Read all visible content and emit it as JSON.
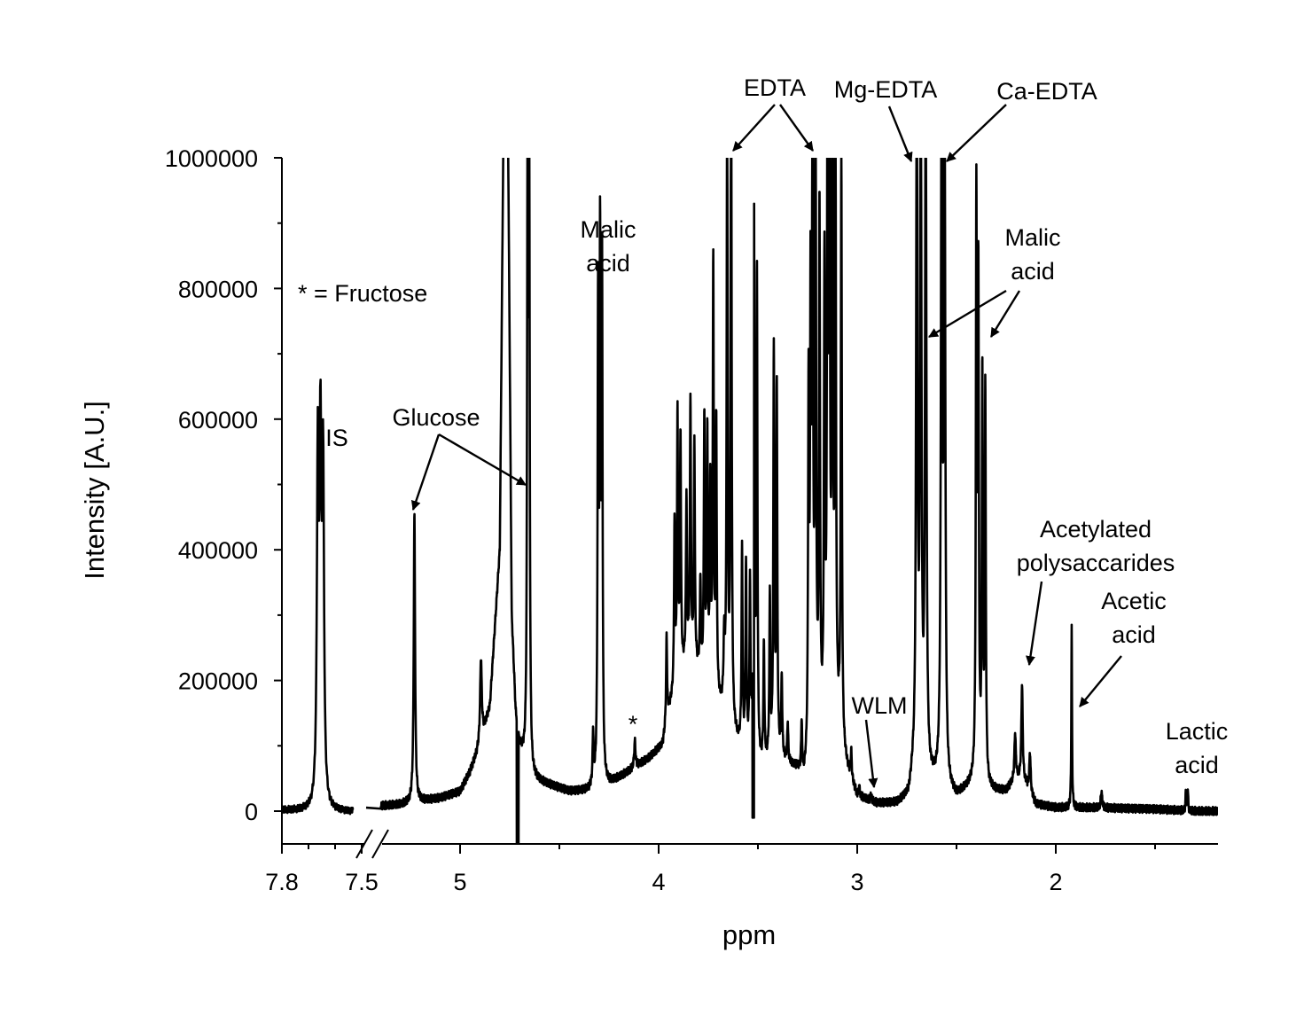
{
  "chart_data": {
    "type": "line",
    "title": "",
    "xlabel": "ppm",
    "ylabel": "Intensity [A.U.]",
    "x_reversed": true,
    "x_axis_break": {
      "from": 7.5,
      "to": 5.4
    },
    "xlim": [
      7.8,
      1.15
    ],
    "ylim": [
      -50000,
      1000000
    ],
    "grid": false,
    "line_color": "#000000",
    "y_ticks": [
      {
        "value": 0,
        "label": "0"
      },
      {
        "value": 200000,
        "label": "200000"
      },
      {
        "value": 400000,
        "label": "400000"
      },
      {
        "value": 600000,
        "label": "600000"
      },
      {
        "value": 800000,
        "label": "800000"
      },
      {
        "value": 1000000,
        "label": "1000000"
      }
    ],
    "x_ticks": [
      {
        "value": 7.8,
        "label": "7.8"
      },
      {
        "value": 7.5,
        "label": "7.5"
      },
      {
        "value": 5,
        "label": "5"
      },
      {
        "value": 4,
        "label": "4"
      },
      {
        "value": 3,
        "label": "3"
      },
      {
        "value": 2,
        "label": "2"
      }
    ],
    "series": [
      {
        "baseline": [
          [
            7.8,
            0
          ],
          [
            7.7,
            0
          ],
          [
            7.65,
            0
          ],
          [
            7.6,
            0
          ],
          [
            7.52,
            0
          ],
          [
            5.4,
            8000
          ],
          [
            5.3,
            10000
          ],
          [
            5.1,
            20000
          ],
          [
            5.0,
            30000
          ],
          [
            4.95,
            60000
          ],
          [
            4.9,
            100000
          ],
          [
            4.85,
            160000
          ],
          [
            4.8,
            400000
          ],
          [
            4.78,
            1100000
          ],
          [
            4.76,
            1100000
          ],
          [
            4.74,
            300000
          ],
          [
            4.72,
            150000
          ],
          [
            4.7,
            100000
          ],
          [
            4.65,
            50000
          ],
          [
            4.55,
            40000
          ],
          [
            4.45,
            30000
          ],
          [
            4.35,
            30000
          ],
          [
            4.25,
            40000
          ],
          [
            4.15,
            60000
          ],
          [
            4.05,
            80000
          ],
          [
            3.98,
            100000
          ],
          [
            3.95,
            150000
          ],
          [
            3.9,
            200000
          ],
          [
            3.85,
            230000
          ],
          [
            3.8,
            210000
          ],
          [
            3.75,
            180000
          ],
          [
            3.7,
            160000
          ],
          [
            3.6,
            100000
          ],
          [
            3.5,
            60000
          ],
          [
            3.4,
            80000
          ],
          [
            3.3,
            60000
          ],
          [
            3.27,
            40000
          ],
          [
            3.2,
            100000
          ],
          [
            3.1,
            120000
          ],
          [
            3.05,
            60000
          ],
          [
            3.0,
            20000
          ],
          [
            2.9,
            10000
          ],
          [
            2.8,
            10000
          ],
          [
            2.74,
            20000
          ],
          [
            2.72,
            50000
          ],
          [
            2.6,
            40000
          ],
          [
            2.5,
            20000
          ],
          [
            2.42,
            40000
          ],
          [
            2.3,
            30000
          ],
          [
            2.25,
            30000
          ],
          [
            2.2,
            50000
          ],
          [
            2.15,
            40000
          ],
          [
            2.1,
            10000
          ],
          [
            2.0,
            5000
          ],
          [
            1.9,
            5000
          ],
          [
            1.8,
            5000
          ],
          [
            1.5,
            3000
          ],
          [
            1.3,
            0
          ],
          [
            1.15,
            0
          ]
        ],
        "peaks": [
          [
            7.665,
            525000,
            0.004
          ],
          [
            7.655,
            532000,
            0.004
          ],
          [
            7.645,
            505000,
            0.004
          ],
          [
            5.23,
            440000,
            0.004
          ],
          [
            4.895,
            130000,
            0.005
          ],
          [
            4.66,
            960000,
            0.003
          ],
          [
            4.652,
            975000,
            0.003
          ],
          [
            4.33,
            80000,
            0.003
          ],
          [
            4.305,
            720000,
            0.003
          ],
          [
            4.295,
            790000,
            0.003
          ],
          [
            4.285,
            770000,
            0.003
          ],
          [
            4.12,
            40000,
            0.004
          ],
          [
            3.96,
            130000,
            0.003
          ],
          [
            3.92,
            250000,
            0.003
          ],
          [
            3.905,
            400000,
            0.003
          ],
          [
            3.89,
            360000,
            0.003
          ],
          [
            3.86,
            250000,
            0.003
          ],
          [
            3.84,
            400000,
            0.003
          ],
          [
            3.82,
            340000,
            0.003
          ],
          [
            3.79,
            140000,
            0.003
          ],
          [
            3.77,
            400000,
            0.003
          ],
          [
            3.755,
            380000,
            0.003
          ],
          [
            3.74,
            300000,
            0.003
          ],
          [
            3.725,
            650000,
            0.003
          ],
          [
            3.71,
            420000,
            0.003
          ],
          [
            3.67,
            100000,
            0.004
          ],
          [
            3.655,
            950000,
            0.003
          ],
          [
            3.635,
            1100000,
            0.003
          ],
          [
            3.58,
            300000,
            0.003
          ],
          [
            3.56,
            280000,
            0.003
          ],
          [
            3.54,
            250000,
            0.003
          ],
          [
            3.52,
            870000,
            0.003
          ],
          [
            3.505,
            740000,
            0.003
          ],
          [
            3.47,
            180000,
            0.003
          ],
          [
            3.44,
            250000,
            0.003
          ],
          [
            3.42,
            620000,
            0.003
          ],
          [
            3.405,
            560000,
            0.003
          ],
          [
            3.38,
            120000,
            0.003
          ],
          [
            3.35,
            60000,
            0.003
          ],
          [
            3.28,
            80000,
            0.003
          ],
          [
            3.245,
            550000,
            0.003
          ],
          [
            3.235,
            660000,
            0.003
          ],
          [
            3.225,
            1100000,
            0.003
          ],
          [
            3.21,
            1100000,
            0.003
          ],
          [
            3.19,
            800000,
            0.003
          ],
          [
            3.165,
            700000,
            0.003
          ],
          [
            3.15,
            900000,
            0.003
          ],
          [
            3.14,
            1100000,
            0.003
          ],
          [
            3.125,
            1100000,
            0.003
          ],
          [
            3.11,
            1100000,
            0.003
          ],
          [
            3.08,
            900000,
            0.003
          ],
          [
            3.03,
            40000,
            0.003
          ],
          [
            2.99,
            15000,
            0.003
          ],
          [
            2.93,
            10000,
            0.003
          ],
          [
            2.7,
            1100000,
            0.004
          ],
          [
            2.68,
            1100000,
            0.004
          ],
          [
            2.655,
            1100000,
            0.004
          ],
          [
            2.575,
            1100000,
            0.004
          ],
          [
            2.56,
            1100000,
            0.004
          ],
          [
            2.4,
            880000,
            0.003
          ],
          [
            2.39,
            750000,
            0.003
          ],
          [
            2.37,
            620000,
            0.003
          ],
          [
            2.355,
            600000,
            0.003
          ],
          [
            2.205,
            70000,
            0.004
          ],
          [
            2.17,
            150000,
            0.004
          ],
          [
            2.13,
            60000,
            0.004
          ],
          [
            1.92,
            275000,
            0.002
          ],
          [
            1.77,
            25000,
            0.004
          ],
          [
            1.345,
            30000,
            0.002
          ],
          [
            1.335,
            32000,
            0.002
          ]
        ]
      }
    ],
    "annotations": [
      {
        "id": "is",
        "lines": [
          "IS"
        ]
      },
      {
        "id": "glucose",
        "lines": [
          "Glucose"
        ]
      },
      {
        "id": "fructose-key",
        "lines": [
          "* = Fructose"
        ]
      },
      {
        "id": "fructose-star",
        "lines": [
          "*"
        ]
      },
      {
        "id": "malic-1",
        "lines": [
          "Malic",
          "acid"
        ]
      },
      {
        "id": "edta",
        "lines": [
          "EDTA"
        ]
      },
      {
        "id": "mg-edta",
        "lines": [
          "Mg-EDTA"
        ]
      },
      {
        "id": "ca-edta",
        "lines": [
          "Ca-EDTA"
        ]
      },
      {
        "id": "malic-2",
        "lines": [
          "Malic",
          "acid"
        ]
      },
      {
        "id": "wlm",
        "lines": [
          "WLM"
        ]
      },
      {
        "id": "acetylated",
        "lines": [
          "Acetylated",
          "polysaccarides"
        ]
      },
      {
        "id": "acetic",
        "lines": [
          "Acetic",
          "acid"
        ]
      },
      {
        "id": "lactic",
        "lines": [
          "Lactic",
          "acid"
        ]
      }
    ]
  }
}
